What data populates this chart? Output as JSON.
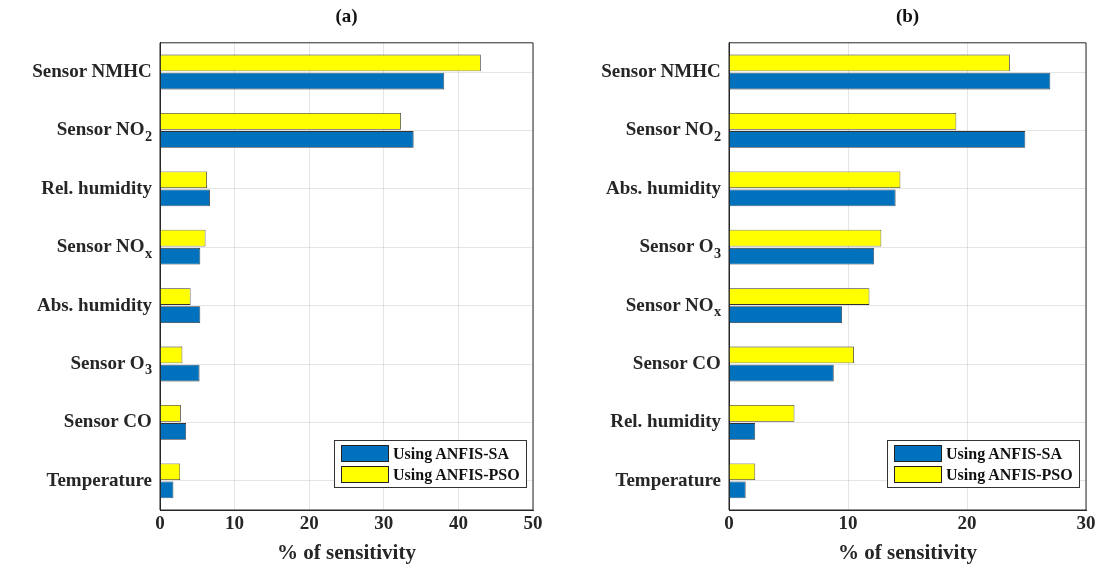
{
  "chart_data": [
    {
      "type": "bar",
      "orientation": "horizontal",
      "title": "(a)",
      "xlabel": "% of sensitivity",
      "categories": [
        "Sensor NMHC",
        "Sensor NO$_{2}$",
        "Rel. humidity",
        "Sensor NO$_{x}$",
        "Abs. humidity",
        "Sensor O$_{3}$",
        "Sensor CO",
        "Temperature"
      ],
      "series": [
        {
          "name": "Using ANFIS-SA",
          "color": "#0072bd",
          "values": [
            38.1,
            34.0,
            6.7,
            5.4,
            5.4,
            5.3,
            3.5,
            1.8
          ]
        },
        {
          "name": "Using ANFIS-PSO",
          "color": "#ffff00",
          "values": [
            43.0,
            32.3,
            6.3,
            6.1,
            4.1,
            3.0,
            2.8,
            2.7
          ]
        }
      ],
      "xlim": [
        0,
        50
      ],
      "xticks": [
        0,
        10,
        20,
        30,
        40,
        50
      ],
      "grid": true,
      "legend": "bottom right"
    },
    {
      "type": "bar",
      "orientation": "horizontal",
      "title": "(b)",
      "xlabel": "% of sensitivity",
      "categories": [
        "Sensor NMHC",
        "Sensor NO$_{2}$",
        "Abs. humidity",
        "Sensor O$_{3}$",
        "Sensor NO$_{x}$",
        "Sensor CO",
        "Rel. humidity",
        "Temperature"
      ],
      "series": [
        {
          "name": "Using ANFIS-SA",
          "color": "#0072bd",
          "values": [
            27.0,
            24.9,
            14.0,
            12.2,
            9.5,
            8.8,
            2.2,
            1.4
          ]
        },
        {
          "name": "Using ANFIS-PSO",
          "color": "#ffff00",
          "values": [
            23.6,
            19.1,
            14.4,
            12.8,
            11.8,
            10.5,
            5.5,
            2.2
          ]
        }
      ],
      "xlim": [
        0,
        30
      ],
      "xticks": [
        0,
        10,
        20,
        30
      ],
      "grid": true,
      "legend": "bottom right"
    }
  ]
}
